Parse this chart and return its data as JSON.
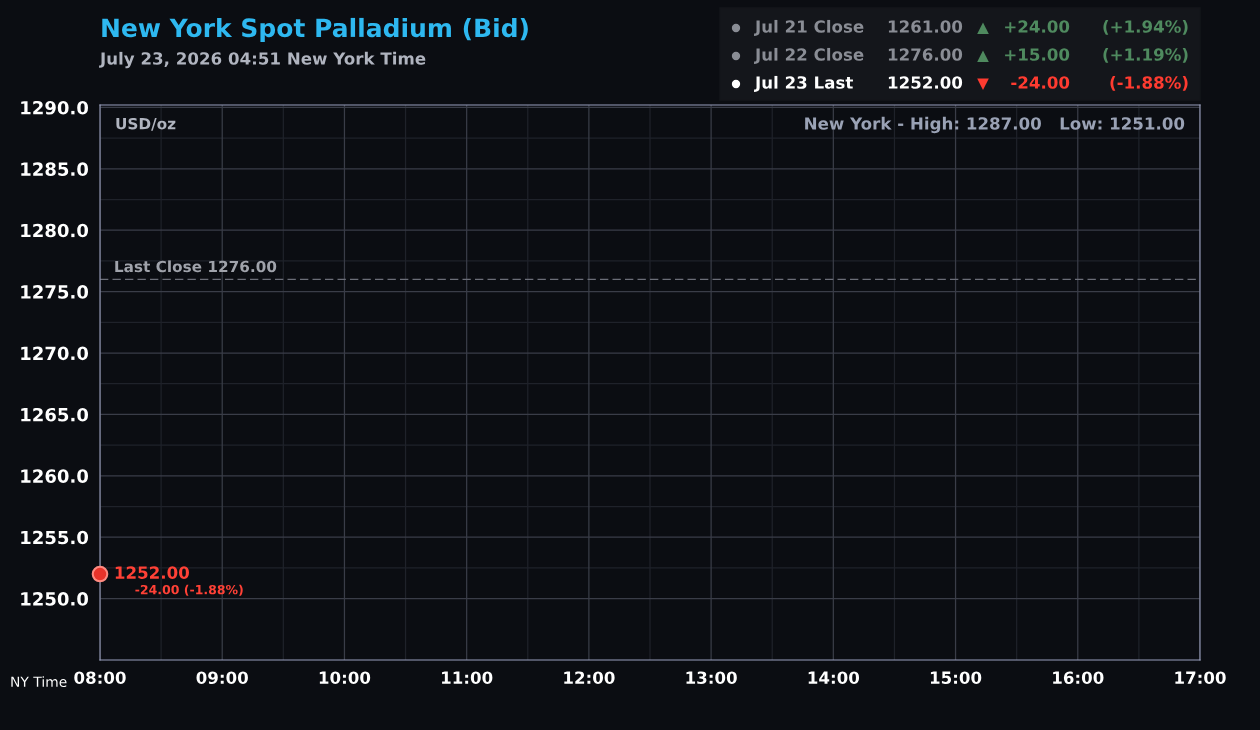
{
  "chart_data": {
    "type": "scatter",
    "title": "New York Spot Palladium (Bid)",
    "subtitle": "July 23, 2026 04:51 New York Time",
    "xlabel": "NY Time",
    "x": [
      8
    ],
    "series": [
      {
        "color": "#e8332a",
        "values": [
          1252
        ],
        "value_labels": [
          "1252.00"
        ]
      }
    ],
    "xlim": [
      8,
      17
    ],
    "xticks": [
      {
        "value": 8,
        "label": "08:00"
      },
      {
        "value": 9,
        "label": "09:00"
      },
      {
        "value": 10,
        "label": "10:00"
      },
      {
        "value": 11,
        "label": "11:00"
      },
      {
        "value": 12,
        "label": "12:00"
      },
      {
        "value": 13,
        "label": "13:00"
      },
      {
        "value": 14,
        "label": "14:00"
      },
      {
        "value": 15,
        "label": "15:00"
      },
      {
        "value": 16,
        "label": "16:00"
      },
      {
        "value": 17,
        "label": "17:00"
      }
    ],
    "ylim": [
      1245,
      1290.2
    ],
    "yticks": [
      {
        "value": 1250,
        "label": "1250.0"
      },
      {
        "value": 1255,
        "label": "1255.0"
      },
      {
        "value": 1260,
        "label": "1260.0"
      },
      {
        "value": 1265,
        "label": "1265.0"
      },
      {
        "value": 1270,
        "label": "1270.0"
      },
      {
        "value": 1275,
        "label": "1275.0"
      },
      {
        "value": 1280,
        "label": "1280.0"
      },
      {
        "value": 1285,
        "label": "1285.0"
      },
      {
        "value": 1290,
        "label": "1290.0"
      }
    ],
    "grid": true,
    "marker": "circle",
    "ref_lines": [
      {
        "axis": "y",
        "value": 1276,
        "label": "Last Close 1276.00",
        "color": "#6b6e78",
        "line_style": "dashed"
      }
    ],
    "annotations": [
      "USD/oz",
      "New York - High: 1287.00   Low: 1251.00",
      "Jul 21 Close",
      "1261.00",
      "▲",
      "+24.00",
      "(+1.94%)",
      "Jul 22 Close",
      "1276.00",
      "▲",
      "+15.00",
      "(+1.19%)",
      "Jul 23 Last",
      "1252.00",
      "▼",
      "-24.00",
      "(-1.88%)",
      {
        "text": "-24.00 (-1.88%)",
        "x": 8,
        "y": 1252
      }
    ]
  }
}
